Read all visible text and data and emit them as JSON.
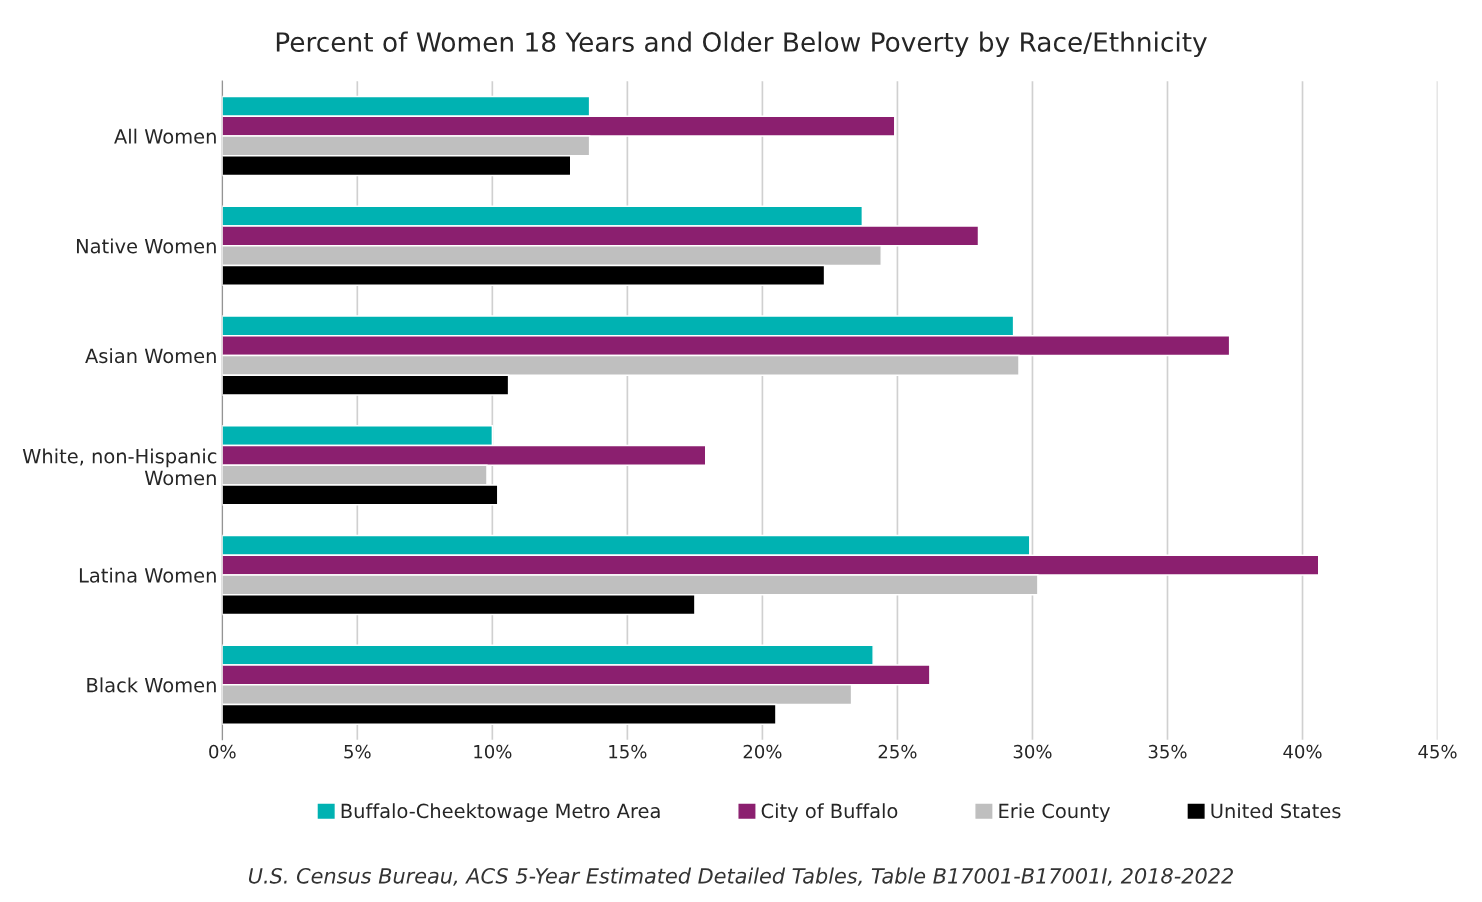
{
  "chart_data": {
    "type": "bar",
    "orientation": "horizontal",
    "title": "Percent of Women 18 Years and Older Below Poverty by Race/Ethnicity",
    "categories": [
      "All Women",
      "Native Women",
      "Asian Women",
      "White, non-Hispanic\nWomen",
      "Latina Women",
      "Black Women"
    ],
    "series": [
      {
        "name": "Buffalo-Cheektowage Metro Area",
        "color": "#00b2b2",
        "values": [
          13.6,
          23.7,
          29.3,
          10.0,
          29.9,
          24.1
        ]
      },
      {
        "name": "City of Buffalo",
        "color": "#8b1f6f",
        "values": [
          24.9,
          28.0,
          37.3,
          17.9,
          40.6,
          26.2
        ]
      },
      {
        "name": "Erie County",
        "color": "#bfbfbf",
        "values": [
          13.6,
          24.4,
          29.5,
          9.8,
          30.2,
          23.3
        ]
      },
      {
        "name": "United States",
        "color": "#000000",
        "values": [
          12.9,
          22.3,
          10.6,
          10.2,
          17.5,
          20.5
        ]
      }
    ],
    "xlim": [
      0,
      45
    ],
    "xticks": [
      {
        "value": 0,
        "label": "0%"
      },
      {
        "value": 5,
        "label": "5%"
      },
      {
        "value": 10,
        "label": "10%"
      },
      {
        "value": 15,
        "label": "15%"
      },
      {
        "value": 20,
        "label": "20%"
      },
      {
        "value": 25,
        "label": "25%"
      },
      {
        "value": 30,
        "label": "30%"
      },
      {
        "value": 35,
        "label": "35%"
      },
      {
        "value": 40,
        "label": "40%"
      },
      {
        "value": 45,
        "label": "45%"
      }
    ],
    "grid": "x",
    "legend": "bottom",
    "annotations": [
      "U.S. Census Bureau, ACS 5-Year Estimated Detailed Tables, Table B17001-B17001I, 2018-2022"
    ]
  }
}
